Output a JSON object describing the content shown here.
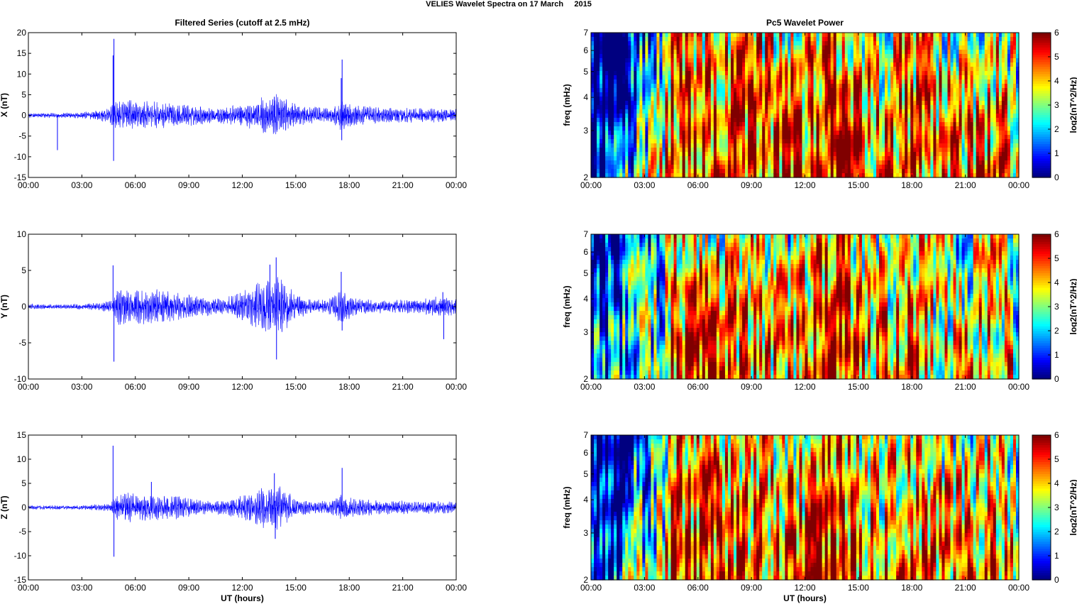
{
  "figure": {
    "suptitle": "VELIES Wavelet Spectra on 17 March     2015"
  },
  "chart_data": [
    {
      "type": "line",
      "panel": "filtered-x",
      "title": "Filtered Series (cutoff at 2.5 mHz)",
      "xlabel": "",
      "ylabel": "X (nT)",
      "xlim": [
        0,
        24
      ],
      "ylim": [
        -15,
        20
      ],
      "yticks": [
        -15,
        -10,
        -5,
        0,
        5,
        10,
        15,
        20
      ],
      "xtick_labels": [
        "00:00",
        "03:00",
        "06:00",
        "09:00",
        "12:00",
        "15:00",
        "18:00",
        "21:00",
        "00:00"
      ],
      "line_color": "#0000ff",
      "envelope": [
        [
          0,
          0.4
        ],
        [
          1.5,
          0.4
        ],
        [
          3,
          0.5
        ],
        [
          4.5,
          1.2
        ],
        [
          5,
          2.5
        ],
        [
          6,
          2.5
        ],
        [
          8,
          2.0
        ],
        [
          10,
          1.5
        ],
        [
          11,
          1.5
        ],
        [
          12,
          1.8
        ],
        [
          13,
          3.0
        ],
        [
          14,
          3.5
        ],
        [
          15,
          2.0
        ],
        [
          16,
          1.5
        ],
        [
          17,
          1.2
        ],
        [
          17.5,
          2.5
        ],
        [
          18.5,
          1.8
        ],
        [
          20,
          1.3
        ],
        [
          22,
          1.2
        ],
        [
          24,
          1.2
        ]
      ],
      "spikes": [
        [
          1.63,
          -8.4
        ],
        [
          4.75,
          14.5
        ],
        [
          4.8,
          18.5
        ],
        [
          4.78,
          -11
        ],
        [
          13.8,
          4.5
        ],
        [
          17.55,
          9
        ],
        [
          17.6,
          13.5
        ],
        [
          17.58,
          -6
        ]
      ]
    },
    {
      "type": "line",
      "panel": "filtered-y",
      "title": "",
      "xlabel": "",
      "ylabel": "Y (nT)",
      "xlim": [
        0,
        24
      ],
      "ylim": [
        -10,
        10
      ],
      "yticks": [
        -10,
        -5,
        0,
        5,
        10
      ],
      "xtick_labels": [
        "00:00",
        "03:00",
        "06:00",
        "09:00",
        "12:00",
        "15:00",
        "18:00",
        "21:00",
        "00:00"
      ],
      "line_color": "#0000ff",
      "envelope": [
        [
          0,
          0.25
        ],
        [
          2,
          0.2
        ],
        [
          3.5,
          0.3
        ],
        [
          4.7,
          0.6
        ],
        [
          5,
          1.8
        ],
        [
          6,
          1.8
        ],
        [
          8,
          1.5
        ],
        [
          10,
          0.9
        ],
        [
          11,
          0.8
        ],
        [
          12,
          1.5
        ],
        [
          13,
          2.5
        ],
        [
          14,
          3.0
        ],
        [
          15,
          1.2
        ],
        [
          16,
          0.6
        ],
        [
          17,
          0.8
        ],
        [
          17.5,
          1.6
        ],
        [
          18.5,
          0.8
        ],
        [
          20,
          0.6
        ],
        [
          22,
          0.7
        ],
        [
          23,
          1.0
        ],
        [
          24,
          0.8
        ]
      ],
      "spikes": [
        [
          4.75,
          5.7
        ],
        [
          4.8,
          -7.6
        ],
        [
          13.55,
          5.8
        ],
        [
          13.9,
          6.8
        ],
        [
          13.92,
          -7.3
        ],
        [
          17.55,
          4.8
        ],
        [
          17.6,
          -3.3
        ],
        [
          23.3,
          -4.5
        ],
        [
          23.25,
          2.0
        ]
      ]
    },
    {
      "type": "line",
      "panel": "filtered-z",
      "title": "",
      "xlabel": "UT (hours)",
      "ylabel": "Z (nT)",
      "xlim": [
        0,
        24
      ],
      "ylim": [
        -15,
        15
      ],
      "yticks": [
        -15,
        -10,
        -5,
        0,
        5,
        10,
        15
      ],
      "xtick_labels": [
        "00:00",
        "03:00",
        "06:00",
        "09:00",
        "12:00",
        "15:00",
        "18:00",
        "21:00",
        "00:00"
      ],
      "line_color": "#0000ff",
      "envelope": [
        [
          0,
          0.3
        ],
        [
          3,
          0.3
        ],
        [
          4.6,
          0.6
        ],
        [
          5,
          2.2
        ],
        [
          6,
          2.0
        ],
        [
          8,
          1.8
        ],
        [
          10,
          1.0
        ],
        [
          11,
          1.0
        ],
        [
          12,
          1.8
        ],
        [
          13,
          2.8
        ],
        [
          14,
          3.2
        ],
        [
          15,
          1.4
        ],
        [
          16,
          1.0
        ],
        [
          17,
          0.9
        ],
        [
          17.5,
          2.0
        ],
        [
          18.5,
          1.3
        ],
        [
          20,
          1.0
        ],
        [
          22,
          0.9
        ],
        [
          24,
          0.9
        ]
      ],
      "spikes": [
        [
          4.75,
          12.8
        ],
        [
          4.8,
          -10.2
        ],
        [
          13.8,
          7.1
        ],
        [
          13.85,
          -6.5
        ],
        [
          17.6,
          8.2
        ],
        [
          6.9,
          5.3
        ]
      ]
    },
    {
      "type": "heatmap",
      "panel": "wavelet-x",
      "title": "Pc5 Wavelet Power",
      "xlabel": "",
      "ylabel": "freq (mHz)",
      "xlim": [
        0,
        24
      ],
      "ylim": [
        2,
        7
      ],
      "yscale": "log",
      "yticks": [
        2,
        3,
        4,
        5,
        6,
        7
      ],
      "xtick_labels": [
        "00:00",
        "03:00",
        "06:00",
        "09:00",
        "12:00",
        "15:00",
        "18:00",
        "21:00",
        "00:00"
      ],
      "colormap": "jet",
      "clim": [
        0,
        6
      ],
      "colorbar_ticks": [
        0,
        1,
        2,
        3,
        4,
        5,
        6
      ],
      "colorbar_label": "log2(nT^2/Hz)",
      "activity_profile": [
        [
          0,
          0.5
        ],
        [
          1.5,
          1.0
        ],
        [
          2,
          2.2
        ],
        [
          3,
          2.8
        ],
        [
          4,
          3.6
        ],
        [
          4.5,
          5.5
        ],
        [
          6,
          5.4
        ],
        [
          9,
          5.2
        ],
        [
          12,
          5.0
        ],
        [
          13,
          5.8
        ],
        [
          14,
          5.6
        ],
        [
          16,
          4.6
        ],
        [
          17,
          4.8
        ],
        [
          17.5,
          5.6
        ],
        [
          19,
          4.8
        ],
        [
          21,
          4.5
        ],
        [
          22.5,
          5.0
        ],
        [
          23.3,
          4.5
        ],
        [
          24,
          4.0
        ]
      ]
    },
    {
      "type": "heatmap",
      "panel": "wavelet-y",
      "title": "",
      "xlabel": "",
      "ylabel": "freq (mHz)",
      "xlim": [
        0,
        24
      ],
      "ylim": [
        2,
        7
      ],
      "yscale": "log",
      "yticks": [
        2,
        3,
        4,
        5,
        6,
        7
      ],
      "xtick_labels": [
        "00:00",
        "03:00",
        "06:00",
        "09:00",
        "12:00",
        "15:00",
        "18:00",
        "21:00",
        "00:00"
      ],
      "colormap": "jet",
      "clim": [
        0,
        6
      ],
      "colorbar_ticks": [
        0,
        1,
        2,
        3,
        4,
        5,
        6
      ],
      "colorbar_label": "log2(nT^2/Hz)",
      "activity_profile": [
        [
          0,
          1.6
        ],
        [
          1.5,
          2.0
        ],
        [
          2,
          2.6
        ],
        [
          3,
          2.8
        ],
        [
          4,
          3.0
        ],
        [
          4.5,
          5.2
        ],
        [
          6,
          5.0
        ],
        [
          9,
          4.6
        ],
        [
          11,
          4.2
        ],
        [
          12,
          4.8
        ],
        [
          13,
          5.6
        ],
        [
          14,
          5.6
        ],
        [
          15.5,
          4.4
        ],
        [
          17,
          4.6
        ],
        [
          17.5,
          5.4
        ],
        [
          19,
          4.2
        ],
        [
          21,
          4.0
        ],
        [
          22.5,
          4.6
        ],
        [
          23.3,
          4.4
        ],
        [
          24,
          3.5
        ]
      ]
    },
    {
      "type": "heatmap",
      "panel": "wavelet-z",
      "title": "",
      "xlabel": "UT (hours)",
      "ylabel": "freq (mHz)",
      "xlim": [
        0,
        24
      ],
      "ylim": [
        2,
        7
      ],
      "yscale": "log",
      "yticks": [
        2,
        3,
        4,
        5,
        6,
        7
      ],
      "xtick_labels": [
        "00:00",
        "03:00",
        "06:00",
        "09:00",
        "12:00",
        "15:00",
        "18:00",
        "21:00",
        "00:00"
      ],
      "colormap": "jet",
      "clim": [
        0,
        6
      ],
      "colorbar_ticks": [
        0,
        1,
        2,
        3,
        4,
        5,
        6
      ],
      "colorbar_label": "log2(nT^2/Hz)",
      "activity_profile": [
        [
          0,
          0.8
        ],
        [
          1.5,
          1.2
        ],
        [
          2,
          2.4
        ],
        [
          3,
          2.8
        ],
        [
          4,
          3.4
        ],
        [
          4.5,
          5.4
        ],
        [
          6,
          5.3
        ],
        [
          9,
          5.0
        ],
        [
          12,
          4.9
        ],
        [
          13,
          5.7
        ],
        [
          14,
          5.6
        ],
        [
          16,
          4.5
        ],
        [
          17,
          4.6
        ],
        [
          17.5,
          5.4
        ],
        [
          19,
          4.7
        ],
        [
          21,
          4.5
        ],
        [
          22.5,
          4.9
        ],
        [
          23.3,
          4.4
        ],
        [
          24,
          3.8
        ]
      ]
    }
  ]
}
